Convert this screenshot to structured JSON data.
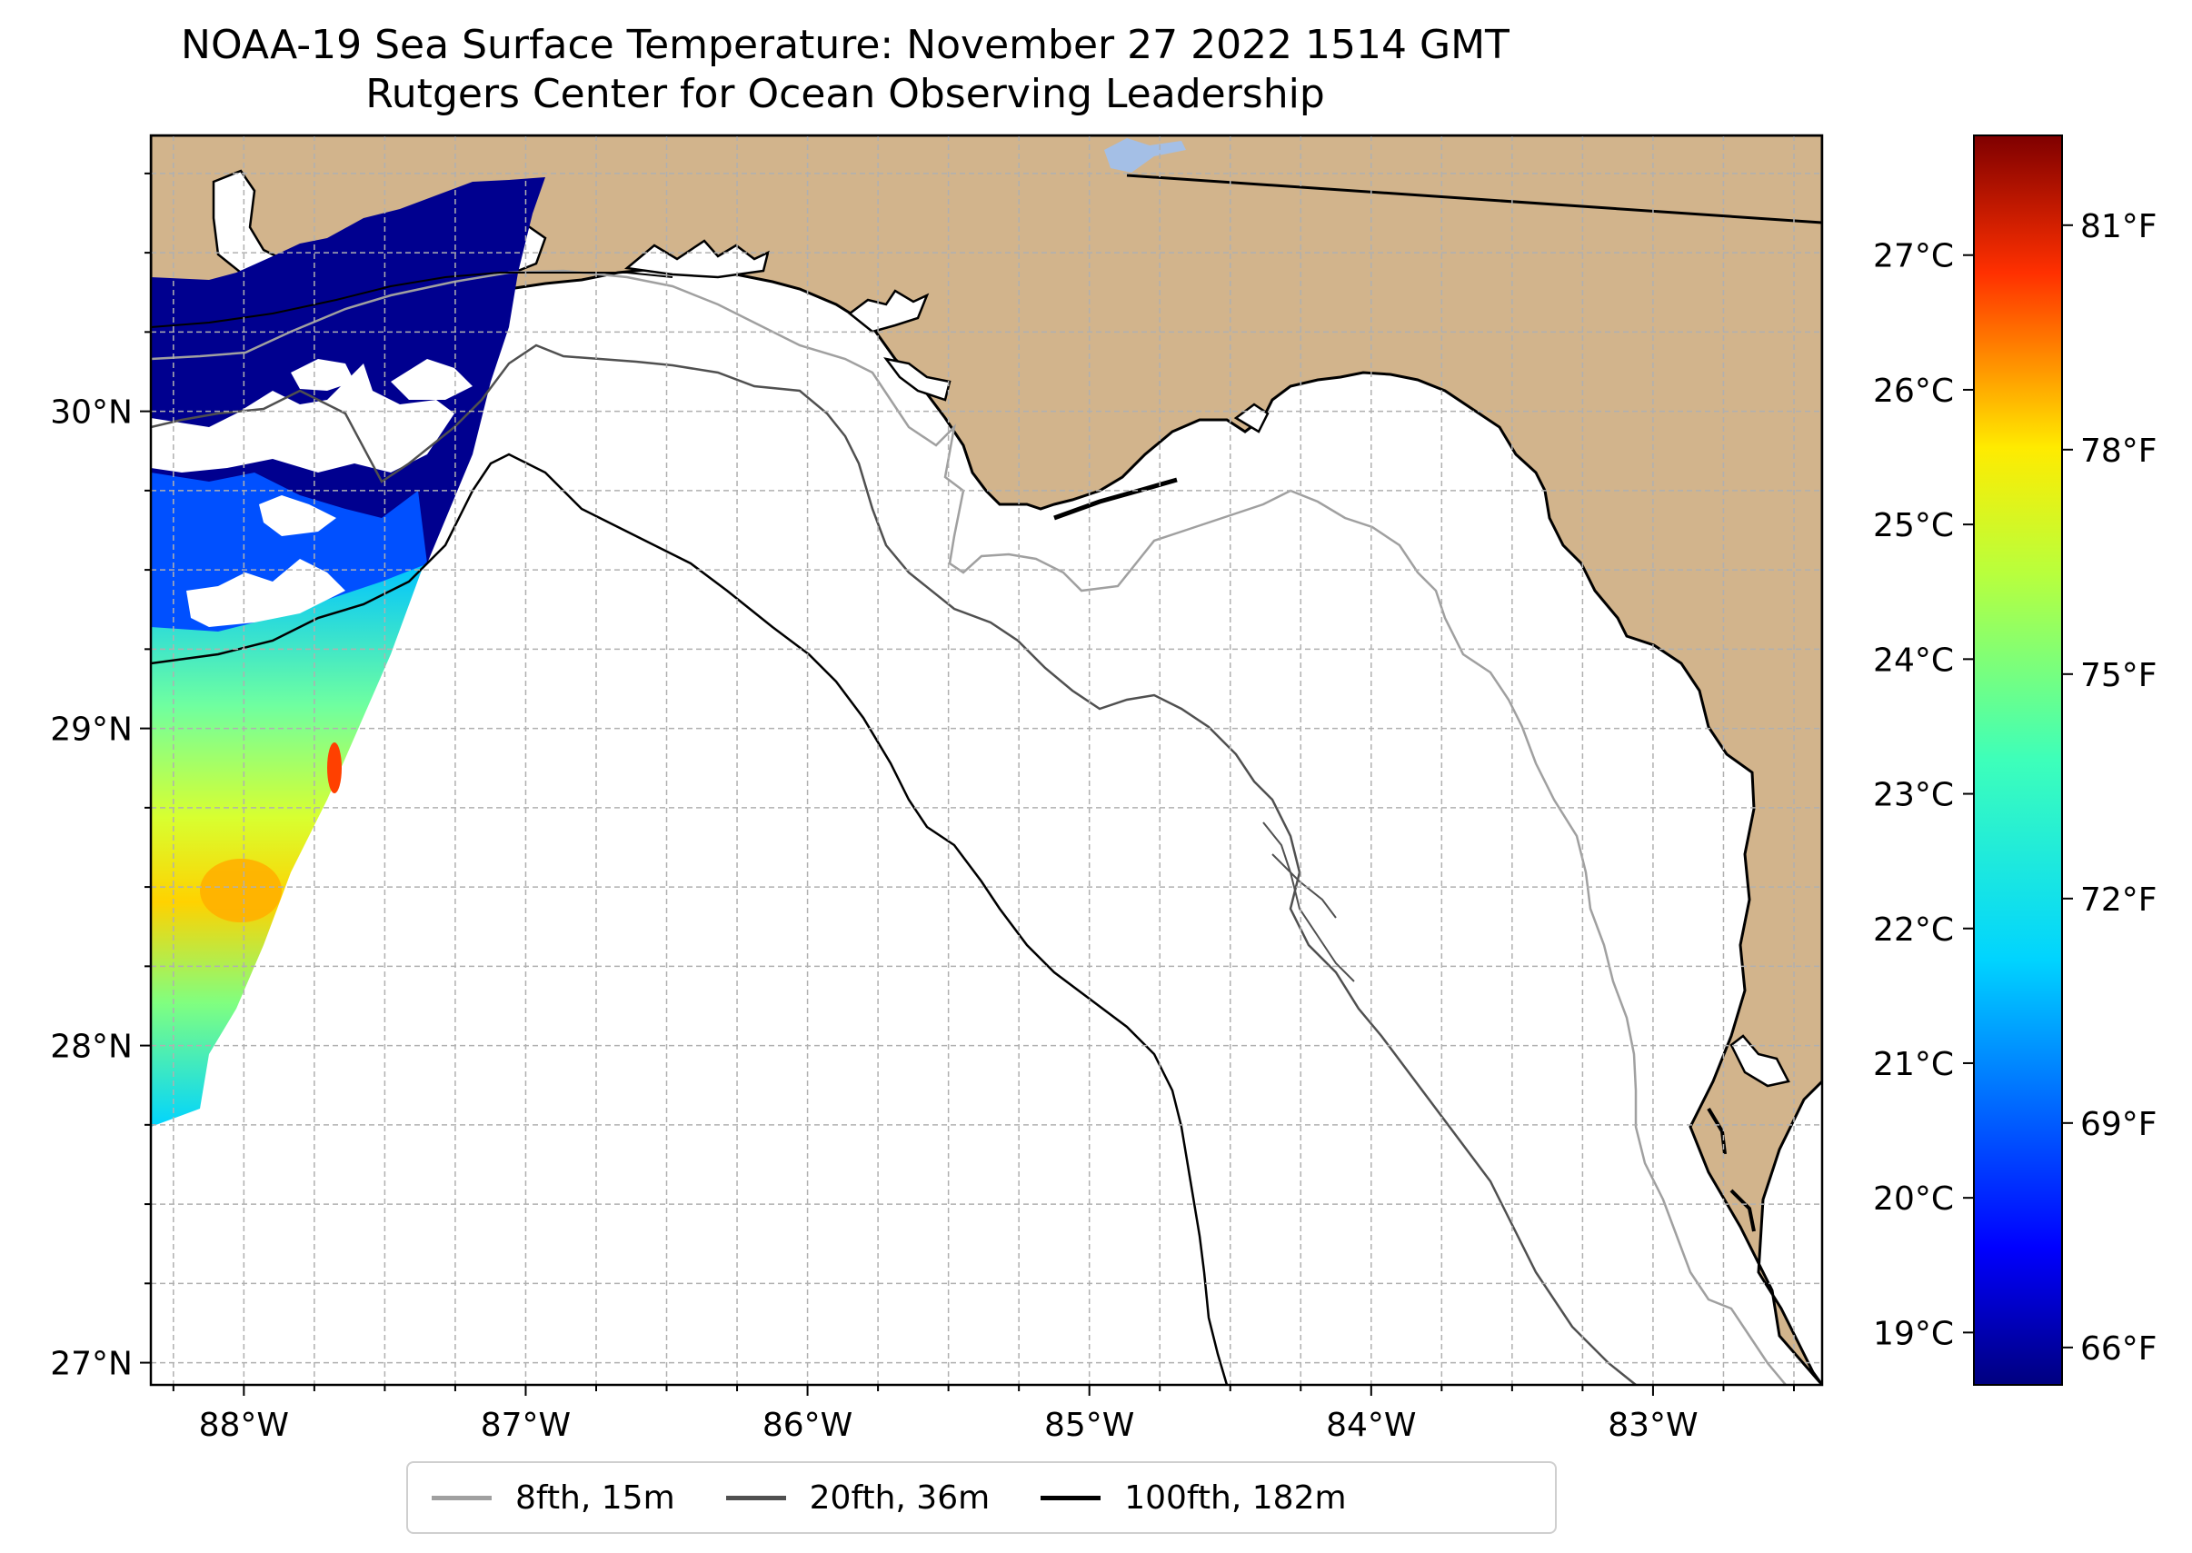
{
  "title": {
    "line1": "NOAA-19 Sea Surface Temperature: November 27 2022 1514 GMT",
    "line2": "Rutgers Center for Ocean Observing Leadership"
  },
  "map": {
    "extent": {
      "lon": [
        -88.33,
        -82.4
      ],
      "lat": [
        26.93,
        30.87
      ]
    },
    "land_color": "#d2b48c",
    "water_color": "#ffffff",
    "lake_color": "#a4bfe6",
    "grid": true,
    "x_ticks": [
      {
        "lon": -88,
        "label": "88°W"
      },
      {
        "lon": -87,
        "label": "87°W"
      },
      {
        "lon": -86,
        "label": "86°W"
      },
      {
        "lon": -85,
        "label": "85°W"
      },
      {
        "lon": -84,
        "label": "84°W"
      },
      {
        "lon": -83,
        "label": "83°W"
      }
    ],
    "y_ticks": [
      {
        "lat": 27,
        "label": "27°N"
      },
      {
        "lat": 28,
        "label": "28°N"
      },
      {
        "lat": 29,
        "label": "29°N"
      },
      {
        "lat": 30,
        "label": "30°N"
      }
    ]
  },
  "colorbar": {
    "colormap": "jet",
    "range_f": [
      65.5,
      82.2
    ],
    "celsius_ticks": [
      {
        "value": 19,
        "label": "19°C"
      },
      {
        "value": 20,
        "label": "20°C"
      },
      {
        "value": 21,
        "label": "21°C"
      },
      {
        "value": 22,
        "label": "22°C"
      },
      {
        "value": 23,
        "label": "23°C"
      },
      {
        "value": 24,
        "label": "24°C"
      },
      {
        "value": 25,
        "label": "25°C"
      },
      {
        "value": 26,
        "label": "26°C"
      },
      {
        "value": 27,
        "label": "27°C"
      }
    ],
    "fahrenheit_ticks": [
      {
        "value": 66,
        "label": "66°F"
      },
      {
        "value": 69,
        "label": "69°F"
      },
      {
        "value": 72,
        "label": "72°F"
      },
      {
        "value": 75,
        "label": "75°F"
      },
      {
        "value": 78,
        "label": "78°F"
      },
      {
        "value": 81,
        "label": "81°F"
      }
    ]
  },
  "legend": {
    "items": [
      {
        "label": "8fth, 15m",
        "color": "#a0a0a0"
      },
      {
        "label": "20fth, 36m",
        "color": "#505050"
      },
      {
        "label": "100fth, 182m",
        "color": "#000000"
      }
    ]
  }
}
